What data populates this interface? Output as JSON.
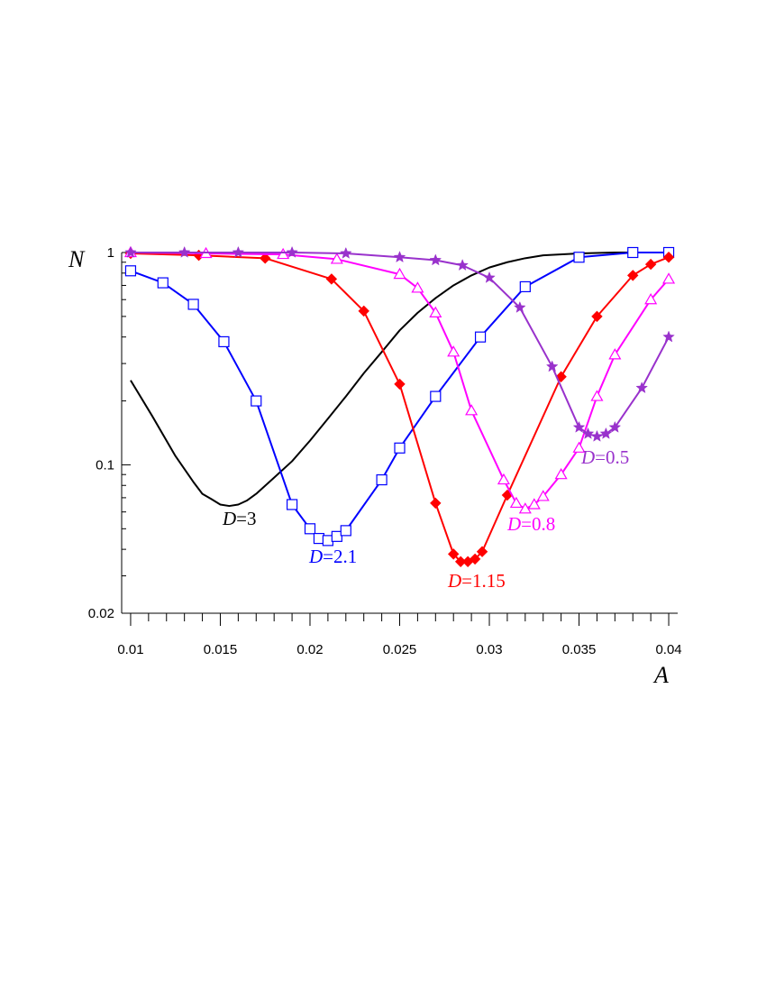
{
  "chart_data": {
    "type": "line",
    "xlabel": "A",
    "ylabel": "N",
    "xlim": [
      0.0095,
      0.0405
    ],
    "ylim": [
      0.02,
      1
    ],
    "yscale": "log",
    "grid": false,
    "x_ticks": [
      "0.01",
      "0.015",
      "0.02",
      "0.025",
      "0.03",
      "0.035",
      "0.04"
    ],
    "y_ticks": [
      "0.02",
      "0.1",
      "1"
    ],
    "series": [
      {
        "name": "D=3",
        "label_var": "D",
        "label_value": "=3",
        "color": "#000000",
        "marker": "none",
        "x": [
          0.01,
          0.0112,
          0.0125,
          0.0135,
          0.014,
          0.0145,
          0.015,
          0.0155,
          0.016,
          0.0165,
          0.017,
          0.018,
          0.019,
          0.02,
          0.021,
          0.022,
          0.023,
          0.024,
          0.025,
          0.026,
          0.027,
          0.028,
          0.029,
          0.03,
          0.031,
          0.032,
          0.033,
          0.035,
          0.037,
          0.04
        ],
        "y": [
          0.25,
          0.17,
          0.11,
          0.083,
          0.073,
          0.069,
          0.065,
          0.064,
          0.065,
          0.068,
          0.073,
          0.087,
          0.104,
          0.13,
          0.165,
          0.21,
          0.27,
          0.34,
          0.43,
          0.52,
          0.61,
          0.7,
          0.78,
          0.85,
          0.9,
          0.94,
          0.97,
          0.99,
          1.0,
          1.0
        ]
      },
      {
        "name": "D=2.1",
        "label_var": "D",
        "label_value": "=2.1",
        "color": "#0000ff",
        "marker": "square",
        "x": [
          0.01,
          0.0118,
          0.0135,
          0.0152,
          0.017,
          0.019,
          0.02,
          0.0205,
          0.021,
          0.0215,
          0.022,
          0.024,
          0.025,
          0.027,
          0.0295,
          0.032,
          0.035,
          0.038,
          0.04
        ],
        "y": [
          0.82,
          0.72,
          0.57,
          0.38,
          0.2,
          0.065,
          0.05,
          0.045,
          0.044,
          0.046,
          0.049,
          0.085,
          0.12,
          0.21,
          0.4,
          0.69,
          0.95,
          1.0,
          1.0
        ]
      },
      {
        "name": "D=1.15",
        "label_var": "D",
        "label_value": "=1.15",
        "color": "#ff0000",
        "marker": "diamond",
        "x": [
          0.01,
          0.0138,
          0.0175,
          0.0212,
          0.023,
          0.025,
          0.027,
          0.028,
          0.0284,
          0.0288,
          0.0292,
          0.0296,
          0.031,
          0.034,
          0.036,
          0.038,
          0.039,
          0.04
        ],
        "y": [
          0.99,
          0.97,
          0.94,
          0.75,
          0.53,
          0.24,
          0.066,
          0.038,
          0.035,
          0.035,
          0.036,
          0.039,
          0.072,
          0.26,
          0.5,
          0.78,
          0.88,
          0.95
        ]
      },
      {
        "name": "D=0.8",
        "label_var": "D",
        "label_value": "=0.8",
        "color": "#ff00ff",
        "marker": "triangle",
        "x": [
          0.01,
          0.0142,
          0.0185,
          0.0215,
          0.025,
          0.026,
          0.027,
          0.028,
          0.029,
          0.0308,
          0.0315,
          0.032,
          0.0325,
          0.033,
          0.034,
          0.035,
          0.036,
          0.037,
          0.039,
          0.04
        ],
        "y": [
          1.0,
          0.99,
          0.98,
          0.93,
          0.79,
          0.68,
          0.52,
          0.34,
          0.18,
          0.085,
          0.066,
          0.062,
          0.065,
          0.071,
          0.09,
          0.12,
          0.21,
          0.33,
          0.6,
          0.75
        ]
      },
      {
        "name": "D=0.5",
        "label_var": "D",
        "label_value": "=0.5",
        "color": "#9932cc",
        "marker": "star",
        "x": [
          0.01,
          0.013,
          0.016,
          0.019,
          0.022,
          0.025,
          0.027,
          0.0285,
          0.03,
          0.0317,
          0.0335,
          0.035,
          0.0355,
          0.036,
          0.0365,
          0.037,
          0.0385,
          0.04
        ],
        "y": [
          1.0,
          1.0,
          1.0,
          1.0,
          0.99,
          0.95,
          0.92,
          0.87,
          0.76,
          0.55,
          0.29,
          0.15,
          0.14,
          0.136,
          0.14,
          0.15,
          0.23,
          0.4
        ]
      }
    ]
  }
}
